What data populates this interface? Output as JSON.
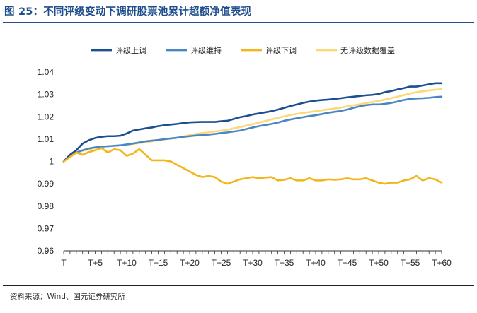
{
  "figure": {
    "title": "图 25：不同评级变动下调研股票池累计超额净值表现",
    "source": "资料来源：Wind、国元证券研究所"
  },
  "chart_data": {
    "type": "line",
    "title": "不同评级变动下调研股票池累计超额净值表现",
    "xlabel": "",
    "ylabel": "",
    "ylim": [
      0.96,
      1.04
    ],
    "yticks": [
      0.96,
      0.97,
      0.98,
      0.99,
      1,
      1.01,
      1.02,
      1.03,
      1.04
    ],
    "ytick_labels": [
      "0.96",
      "0.97",
      "0.98",
      "0.99",
      "1",
      "1.01",
      "1.02",
      "1.03",
      "1.04"
    ],
    "xrange": [
      0,
      60
    ],
    "xticks": [
      0,
      5,
      10,
      15,
      20,
      25,
      30,
      35,
      40,
      45,
      50,
      55,
      60
    ],
    "xtick_labels": [
      "T",
      "T+5",
      "T+10",
      "T+15",
      "T+20",
      "T+25",
      "T+30",
      "T+35",
      "T+40",
      "T+45",
      "T+50",
      "T+55",
      "T+60"
    ],
    "legend_position": "top",
    "grid": false,
    "x": [
      0,
      1,
      2,
      3,
      4,
      5,
      6,
      7,
      8,
      9,
      10,
      11,
      12,
      13,
      14,
      15,
      16,
      17,
      18,
      19,
      20,
      21,
      22,
      23,
      24,
      25,
      26,
      27,
      28,
      29,
      30,
      31,
      32,
      33,
      34,
      35,
      36,
      37,
      38,
      39,
      40,
      41,
      42,
      43,
      44,
      45,
      46,
      47,
      48,
      49,
      50,
      51,
      52,
      53,
      54,
      55,
      56,
      57,
      58,
      59,
      60
    ],
    "series": [
      {
        "name": "评级上调",
        "color": "#1c4f8f",
        "values": [
          1.0,
          1.003,
          1.005,
          1.008,
          1.0095,
          1.0105,
          1.011,
          1.0113,
          1.0113,
          1.0115,
          1.0125,
          1.0138,
          1.0143,
          1.0148,
          1.0152,
          1.0158,
          1.0162,
          1.0165,
          1.0168,
          1.0172,
          1.0175,
          1.0176,
          1.0177,
          1.0177,
          1.0177,
          1.018,
          1.0182,
          1.019,
          1.0198,
          1.0203,
          1.021,
          1.0215,
          1.022,
          1.0225,
          1.0232,
          1.024,
          1.0248,
          1.0255,
          1.0262,
          1.0268,
          1.0272,
          1.0275,
          1.0277,
          1.028,
          1.0283,
          1.0287,
          1.029,
          1.0293,
          1.0296,
          1.0298,
          1.0302,
          1.031,
          1.0315,
          1.0322,
          1.0328,
          1.0335,
          1.0335,
          1.034,
          1.0345,
          1.035,
          1.035
        ]
      },
      {
        "name": "评级维持",
        "color": "#4a86c6",
        "values": [
          1.0,
          1.0025,
          1.004,
          1.005,
          1.0058,
          1.0063,
          1.0066,
          1.0068,
          1.007,
          1.0072,
          1.0076,
          1.008,
          1.0085,
          1.009,
          1.0093,
          1.0096,
          1.01,
          1.0103,
          1.0106,
          1.011,
          1.0113,
          1.0116,
          1.0118,
          1.012,
          1.0123,
          1.0127,
          1.013,
          1.0134,
          1.0138,
          1.0145,
          1.0152,
          1.0158,
          1.0163,
          1.0168,
          1.0174,
          1.0182,
          1.0188,
          1.0193,
          1.0198,
          1.0203,
          1.0207,
          1.0212,
          1.0218,
          1.0222,
          1.0226,
          1.0232,
          1.024,
          1.0247,
          1.0252,
          1.0255,
          1.0255,
          1.0258,
          1.0262,
          1.0268,
          1.0275,
          1.028,
          1.0282,
          1.0283,
          1.0285,
          1.0288,
          1.029
        ]
      },
      {
        "name": "评级下调",
        "color": "#f2b51b",
        "values": [
          1.0,
          1.002,
          1.004,
          1.003,
          1.0042,
          1.005,
          1.006,
          1.004,
          1.0055,
          1.005,
          1.0025,
          1.0035,
          1.0055,
          1.003,
          1.0005,
          1.0005,
          1.0005,
          1.0,
          0.9985,
          0.997,
          0.9955,
          0.994,
          0.993,
          0.9935,
          0.993,
          0.991,
          0.99,
          0.991,
          0.992,
          0.9925,
          0.993,
          0.9925,
          0.9928,
          0.993,
          0.9915,
          0.9918,
          0.9925,
          0.9915,
          0.9915,
          0.9925,
          0.9915,
          0.9915,
          0.992,
          0.9918,
          0.992,
          0.9925,
          0.992,
          0.992,
          0.9925,
          0.9915,
          0.9905,
          0.99,
          0.9905,
          0.9905,
          0.9915,
          0.992,
          0.9935,
          0.9915,
          0.9925,
          0.992,
          0.9905
        ]
      },
      {
        "name": "无评级数据覆盖",
        "color": "#fbd978",
        "values": [
          1.0,
          1.002,
          1.0038,
          1.0048,
          1.0054,
          1.006,
          1.0065,
          1.0068,
          1.007,
          1.0072,
          1.0075,
          1.0078,
          1.0082,
          1.0086,
          1.009,
          1.0094,
          1.0098,
          1.0102,
          1.0106,
          1.0112,
          1.0118,
          1.0123,
          1.0127,
          1.013,
          1.0134,
          1.0138,
          1.0142,
          1.0148,
          1.0154,
          1.016,
          1.0167,
          1.0174,
          1.0181,
          1.0188,
          1.0195,
          1.0202,
          1.0208,
          1.0213,
          1.0217,
          1.0221,
          1.0225,
          1.0229,
          1.0233,
          1.0237,
          1.0241,
          1.0246,
          1.0251,
          1.0256,
          1.0261,
          1.0266,
          1.0271,
          1.0277,
          1.0283,
          1.029,
          1.0297,
          1.0304,
          1.031,
          1.0314,
          1.0318,
          1.0321,
          1.0323
        ]
      }
    ]
  }
}
